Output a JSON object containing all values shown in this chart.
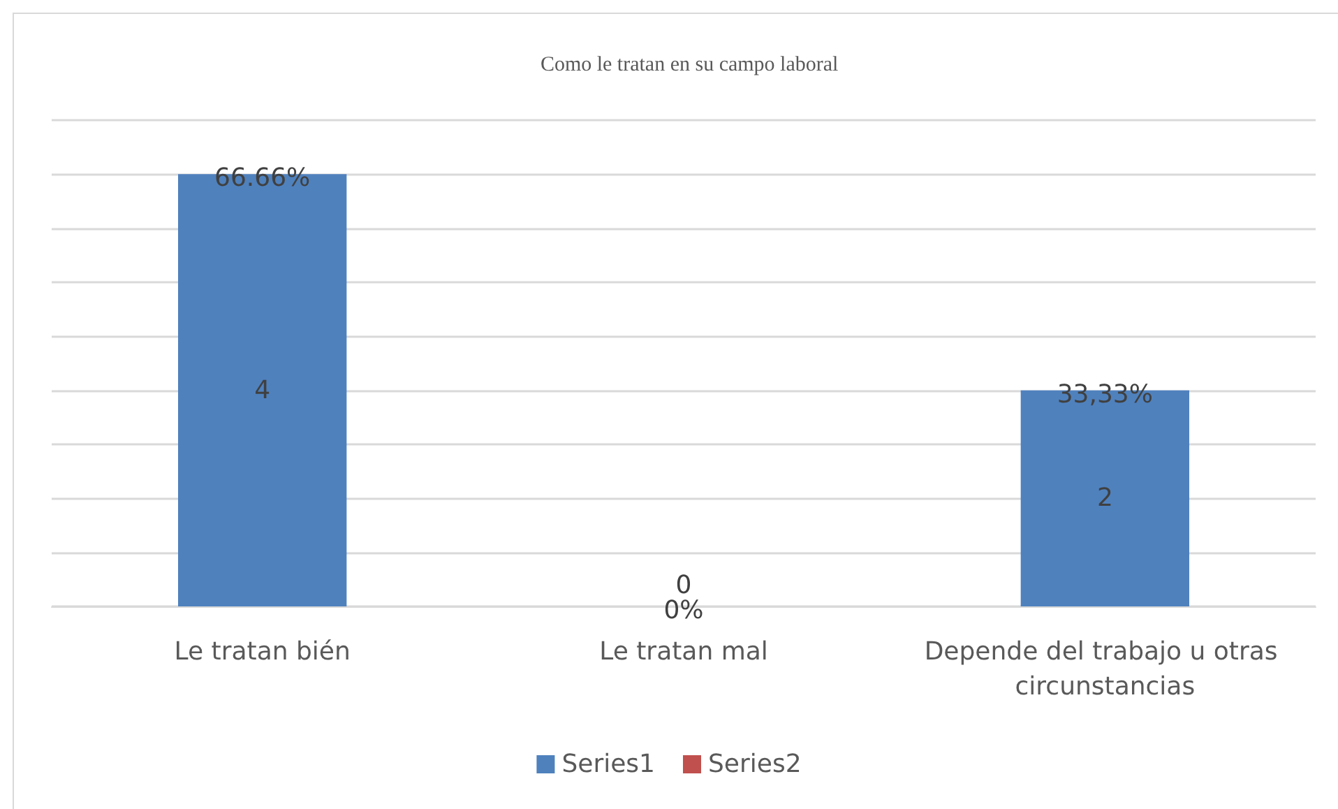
{
  "chart_data": {
    "type": "bar",
    "title": "Como le tratan en su campo laboral",
    "categories": [
      "Le tratan bién",
      "Le tratan mal",
      "Depende del trabajo u otras circunstancias"
    ],
    "series": [
      {
        "name": "Series1",
        "color": "#4f81bd",
        "values": [
          4,
          0,
          2
        ]
      },
      {
        "name": "Series2",
        "color": "#c0504d",
        "values": [
          null,
          null,
          null
        ]
      }
    ],
    "stacked": true,
    "data_labels": true,
    "annotations": [
      {
        "text": "66.66%",
        "x": "Le tratan bién",
        "y": 4
      },
      {
        "text": "0%",
        "x": "Le tratan mal",
        "y": 0
      },
      {
        "text": "33,33%",
        "x": "Depende del trabajo u otras circunstancias",
        "y": 2
      }
    ],
    "ylim": [
      0,
      4.5
    ],
    "yticks": [
      {
        "value": 0,
        "label": null
      },
      {
        "value": 0.5,
        "label": null
      },
      {
        "value": 1,
        "label": null
      },
      {
        "value": 1.5,
        "label": null
      },
      {
        "value": 2,
        "label": null
      },
      {
        "value": 2.5,
        "label": null
      },
      {
        "value": 3,
        "label": null
      },
      {
        "value": 3.5,
        "label": null
      },
      {
        "value": 4,
        "label": null
      },
      {
        "value": 4.5,
        "label": null
      }
    ],
    "tick_labels": "x",
    "grid": "y",
    "legend": "bottom"
  }
}
